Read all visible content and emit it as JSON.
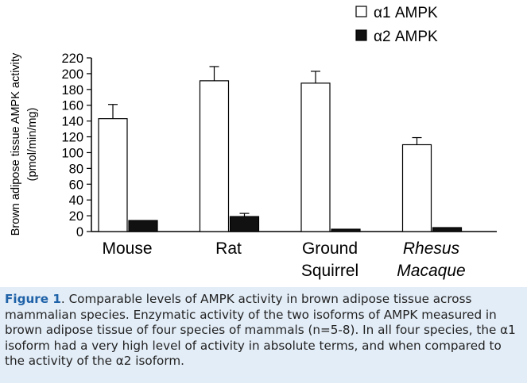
{
  "chart_data": {
    "type": "bar",
    "ylabel": "Brown adipose tissue AMPK activity\n(pmol/min/mg)",
    "ylim": [
      0,
      220
    ],
    "yticks": [
      0,
      20,
      40,
      60,
      80,
      100,
      120,
      140,
      160,
      180,
      200,
      220
    ],
    "grid": false,
    "legend_position": "top-right",
    "categories": [
      {
        "lines": [
          "Mouse"
        ],
        "italic": false
      },
      {
        "lines": [
          "Rat"
        ],
        "italic": false
      },
      {
        "lines": [
          "Ground",
          "Squirrel"
        ],
        "italic": false
      },
      {
        "lines": [
          "Rhesus",
          "Macaque"
        ],
        "italic": true
      }
    ],
    "series": [
      {
        "name": "α1 AMPK",
        "fill": "#ffffff",
        "values": [
          143,
          191,
          188,
          110
        ],
        "errors": [
          18,
          18,
          15,
          9
        ]
      },
      {
        "name": "α2 AMPK",
        "fill": "#111111",
        "values": [
          14,
          19,
          3,
          5
        ],
        "errors": [
          0,
          4,
          0,
          0
        ]
      }
    ]
  },
  "caption": {
    "label": "Figure 1",
    "text": ". Comparable levels of AMPK activity in brown adipose tissue across mammalian species. Enzymatic activity of the two isoforms of AMPK measured in brown adipose tissue of four species of mammals (n=5-8). In all four species, the α1 isoform had a very high level of activity in absolute terms, and when compared to the activity of the α2 isoform."
  },
  "colors": {
    "caption_background": "#e3edf7",
    "caption_label": "#1f62a8"
  }
}
